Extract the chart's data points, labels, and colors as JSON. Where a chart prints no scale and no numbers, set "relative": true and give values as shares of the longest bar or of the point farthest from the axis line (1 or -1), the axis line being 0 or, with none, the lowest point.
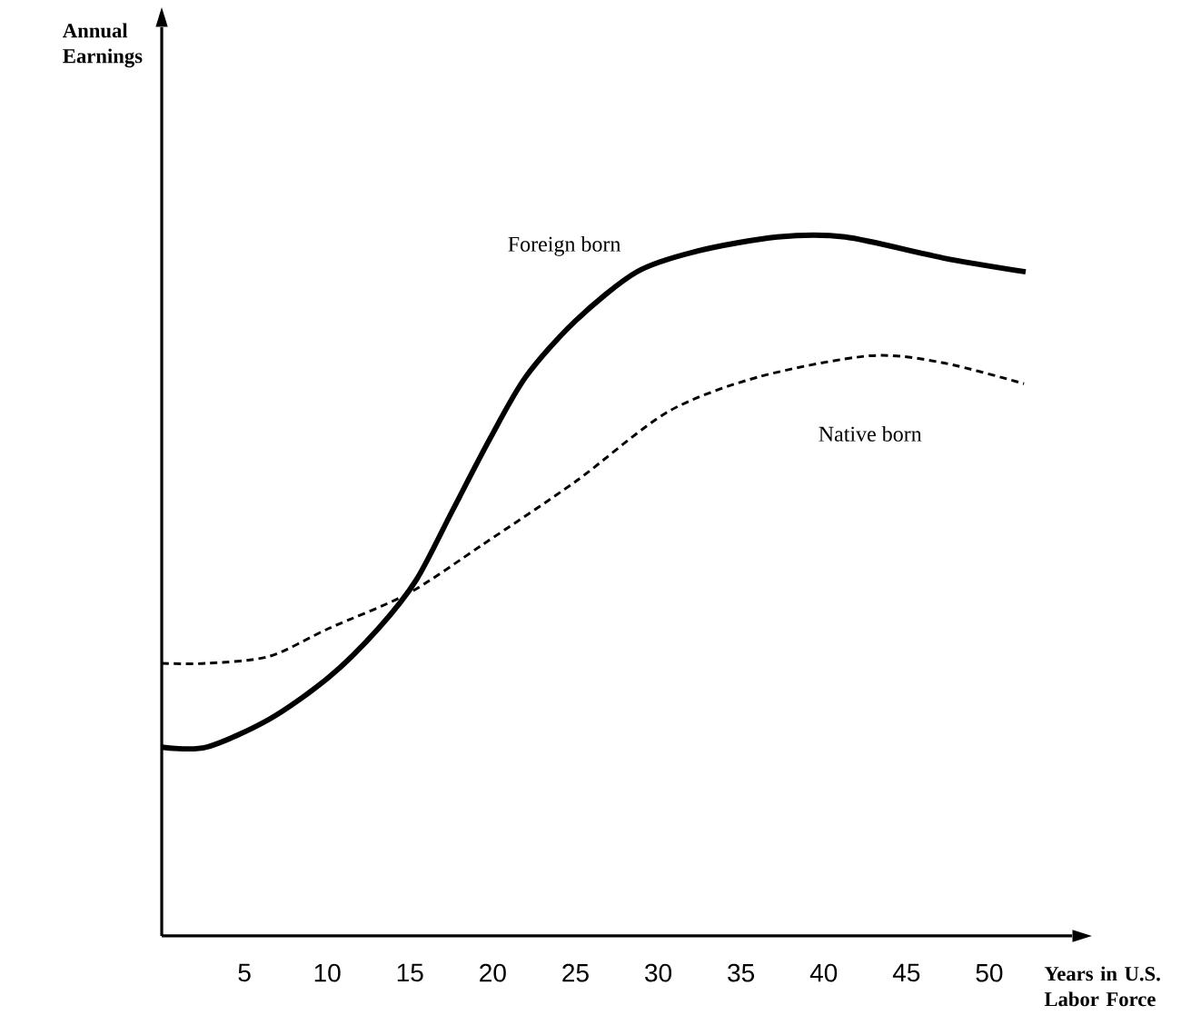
{
  "chart_data": {
    "type": "line",
    "relative": true,
    "xlabel": "Years in U.S. Labor Force",
    "annotations": [
      "Annual Earnings"
    ],
    "xlim": [
      0,
      55
    ],
    "xticks": [
      5,
      10,
      15,
      20,
      25,
      30,
      35,
      40,
      45,
      50
    ],
    "tick_labels": "x",
    "grid": false,
    "legend": false,
    "marker": "none",
    "series": [
      {
        "name": "Foreign born",
        "color": "#000000",
        "line_style": "solid",
        "x": [
          0,
          2.7,
          6.5,
          10.1,
          13.1,
          15.4,
          17.6,
          19.8,
          22,
          25,
          28.7,
          32.4,
          37.2,
          41.3,
          47.2,
          52.2
        ],
        "values": [
          0.27,
          0.27,
          0.31,
          0.37,
          0.44,
          0.51,
          0.61,
          0.71,
          0.8,
          0.88,
          0.95,
          0.98,
          1.0,
          1.0,
          0.97,
          0.95
        ]
      },
      {
        "name": "Native born",
        "color": "#000000",
        "line_style": "dashed",
        "x": [
          0,
          2.7,
          6.5,
          10.1,
          14.9,
          19.4,
          25,
          30.6,
          36.1,
          42.8,
          47.2,
          52.1
        ],
        "values": [
          0.39,
          0.39,
          0.4,
          0.44,
          0.49,
          0.56,
          0.65,
          0.75,
          0.8,
          0.83,
          0.82,
          0.79
        ]
      }
    ]
  }
}
